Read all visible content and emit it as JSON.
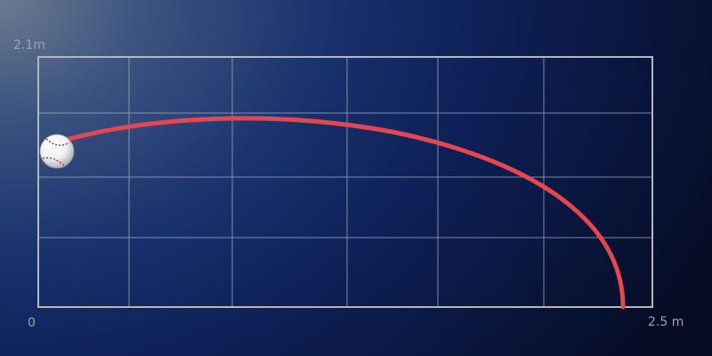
{
  "axes": {
    "y_max_label": "2.1m",
    "x_min_label": "0",
    "x_max_label": "2.5 m",
    "x_range_m": [
      0,
      2.5
    ],
    "y_range_m": [
      0,
      2.1
    ]
  },
  "colors": {
    "grid_line": "#a9adb5",
    "frame": "#b3b6bd",
    "trajectory": "#e5474f",
    "ball": "#ffffff",
    "stitches": "#c0282e"
  },
  "ball": {
    "icon": "baseball-icon"
  }
}
